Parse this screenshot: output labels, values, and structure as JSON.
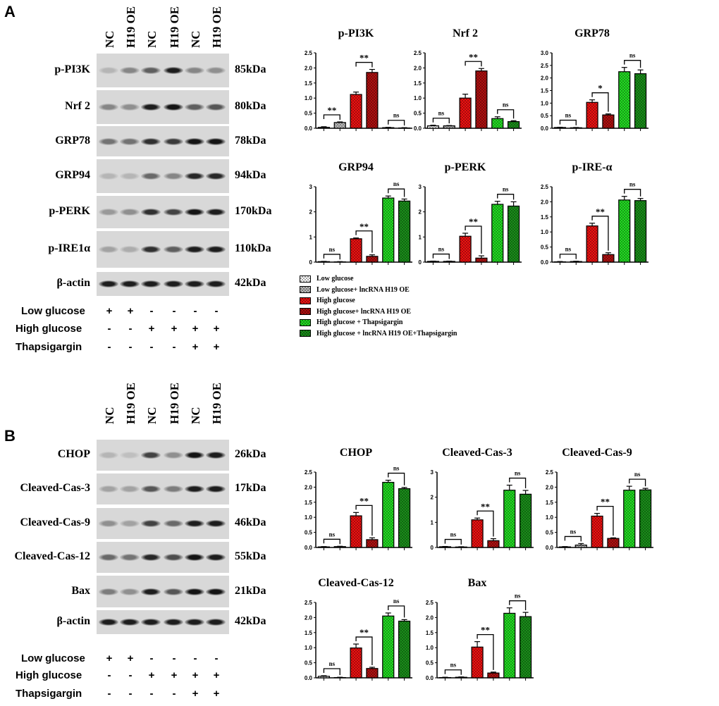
{
  "panels": [
    {
      "label": "A",
      "lanes": [
        "NC",
        "H19 OE",
        "NC",
        "H19 OE",
        "NC",
        "H19 OE"
      ],
      "blots": [
        {
          "protein": "p-PI3K",
          "kda": "85kDa",
          "band_intensity": [
            0.1,
            0.35,
            0.55,
            0.9,
            0.35,
            0.3
          ]
        },
        {
          "protein": "Nrf 2",
          "kda": "80kDa",
          "band_intensity": [
            0.35,
            0.3,
            0.9,
            0.95,
            0.55,
            0.6
          ]
        },
        {
          "protein": "GRP78",
          "kda": "78kDa",
          "band_intensity": [
            0.45,
            0.45,
            0.8,
            0.75,
            0.95,
            0.95
          ]
        },
        {
          "protein": "GRP94",
          "kda": "94kDa",
          "band_intensity": [
            0.1,
            0.1,
            0.5,
            0.35,
            0.85,
            0.85
          ]
        },
        {
          "protein": "p-PERK",
          "kda": "170kDa",
          "band_intensity": [
            0.25,
            0.3,
            0.8,
            0.7,
            0.95,
            0.9
          ]
        },
        {
          "protein": "p-IRE1α",
          "kda": "110kDa",
          "band_intensity": [
            0.2,
            0.15,
            0.8,
            0.55,
            0.9,
            0.9
          ]
        },
        {
          "protein": "β-actin",
          "kda": "42kDa",
          "band_intensity": [
            0.9,
            0.9,
            0.9,
            0.9,
            0.9,
            0.9
          ]
        }
      ],
      "treatments": [
        {
          "name": "Low glucose",
          "signs": [
            "+",
            "+",
            "-",
            "-",
            "-",
            "-"
          ]
        },
        {
          "name": "High glucose",
          "signs": [
            "-",
            "-",
            "+",
            "+",
            "+",
            "+"
          ]
        },
        {
          "name": "Thapsigargin",
          "signs": [
            "-",
            "-",
            "-",
            "-",
            "+",
            "+"
          ]
        }
      ]
    },
    {
      "label": "B",
      "lanes": [
        "NC",
        "H19 OE",
        "NC",
        "H19 OE",
        "NC",
        "H19 OE"
      ],
      "blots": [
        {
          "protein": "CHOP",
          "kda": "26kDa",
          "band_intensity": [
            0.1,
            0.05,
            0.7,
            0.3,
            0.95,
            0.9
          ]
        },
        {
          "protein": "Cleaved-Cas-3",
          "kda": "17kDa",
          "band_intensity": [
            0.2,
            0.2,
            0.6,
            0.4,
            0.9,
            0.9
          ]
        },
        {
          "protein": "Cleaved-Cas-9",
          "kda": "46kDa",
          "band_intensity": [
            0.3,
            0.2,
            0.7,
            0.5,
            0.9,
            0.9
          ]
        },
        {
          "protein": "Cleaved-Cas-12",
          "kda": "55kDa",
          "band_intensity": [
            0.5,
            0.45,
            0.85,
            0.65,
            0.95,
            0.9
          ]
        },
        {
          "protein": "Bax",
          "kda": "21kDa",
          "band_intensity": [
            0.4,
            0.3,
            0.9,
            0.6,
            0.95,
            0.95
          ]
        },
        {
          "protein": "β-actin",
          "kda": "42kDa",
          "band_intensity": [
            0.9,
            0.9,
            0.9,
            0.9,
            0.9,
            0.9
          ]
        }
      ],
      "treatments": [
        {
          "name": "Low glucose",
          "signs": [
            "+",
            "+",
            "-",
            "-",
            "-",
            "-"
          ]
        },
        {
          "name": "High glucose",
          "signs": [
            "-",
            "-",
            "+",
            "+",
            "+",
            "+"
          ]
        },
        {
          "name": "Thapsigargin",
          "signs": [
            "-",
            "-",
            "-",
            "-",
            "+",
            "+"
          ]
        }
      ]
    }
  ],
  "legend": [
    {
      "label": "Low glucose",
      "color": "#ffffff"
    },
    {
      "label": "Low glucose+ lncRNA H19 OE",
      "color": "#bbbbbb"
    },
    {
      "label": "High glucose",
      "color": "#ee1111"
    },
    {
      "label": "High glucose+ lncRNA H19 OE",
      "color": "#b01010"
    },
    {
      "label": "High glucose + Thapsigargin",
      "color": "#22dd22"
    },
    {
      "label": "High glucose + lncRNA H19 OE+Thapsigargin",
      "color": "#1a8f1a"
    }
  ],
  "chart_data": [
    {
      "type": "bar",
      "title": "p-PI3K",
      "ylim": [
        0,
        2.5
      ],
      "ystep": 0.5,
      "decimals": 1,
      "values": [
        0.03,
        0.19,
        1.12,
        1.85,
        0.02,
        0.01
      ],
      "errors": [
        0.02,
        0.02,
        0.08,
        0.1,
        0.01,
        0.01
      ],
      "significance": [
        "**",
        "**",
        "ns"
      ]
    },
    {
      "type": "bar",
      "title": "Nrf 2",
      "ylim": [
        0,
        2.5
      ],
      "ystep": 0.5,
      "decimals": 1,
      "values": [
        0.08,
        0.08,
        1.0,
        1.9,
        0.32,
        0.22
      ],
      "errors": [
        0.02,
        0.01,
        0.13,
        0.08,
        0.06,
        0.03
      ],
      "significance": [
        "ns",
        "**",
        "ns"
      ]
    },
    {
      "type": "bar",
      "title": "GRP78",
      "ylim": [
        0,
        3
      ],
      "ystep": 0.5,
      "decimals": 1,
      "values": [
        0.03,
        0.02,
        1.03,
        0.53,
        2.25,
        2.17
      ],
      "errors": [
        0.01,
        0.01,
        0.1,
        0.04,
        0.17,
        0.15
      ],
      "significance": [
        "ns",
        "*",
        "ns"
      ]
    },
    {
      "type": "bar",
      "title": "GRP94",
      "ylim": [
        0,
        3
      ],
      "ystep": 1,
      "decimals": 0,
      "values": [
        0.02,
        0.01,
        0.93,
        0.23,
        2.55,
        2.43
      ],
      "errors": [
        0.01,
        0.01,
        0.03,
        0.06,
        0.08,
        0.08
      ],
      "significance": [
        "ns",
        "**",
        "ns"
      ]
    },
    {
      "type": "bar",
      "title": "p-PERK",
      "ylim": [
        0,
        3
      ],
      "ystep": 1,
      "decimals": 0,
      "values": [
        0.03,
        0.03,
        1.03,
        0.16,
        2.3,
        2.23
      ],
      "errors": [
        0.01,
        0.01,
        0.12,
        0.09,
        0.12,
        0.17
      ],
      "significance": [
        "ns",
        "**",
        "ns"
      ]
    },
    {
      "type": "bar",
      "title": "p-IRE-α",
      "ylim": [
        0,
        2.5
      ],
      "ystep": 0.5,
      "decimals": 1,
      "values": [
        0.01,
        0.02,
        1.2,
        0.25,
        2.06,
        2.04
      ],
      "errors": [
        0.01,
        0.01,
        0.09,
        0.06,
        0.12,
        0.07
      ],
      "significance": [
        "ns",
        "**",
        "ns"
      ]
    },
    {
      "type": "bar",
      "title": "CHOP",
      "ylim": [
        0,
        2.5
      ],
      "ystep": 0.5,
      "decimals": 1,
      "values": [
        0.02,
        0.03,
        1.05,
        0.26,
        2.16,
        1.95
      ],
      "errors": [
        0.01,
        0.01,
        0.11,
        0.06,
        0.07,
        0.04
      ],
      "significance": [
        "ns",
        "**",
        "ns"
      ]
    },
    {
      "type": "bar",
      "title": "Cleaved-Cas-3",
      "ylim": [
        0,
        3
      ],
      "ystep": 1,
      "decimals": 0,
      "values": [
        0.03,
        0.02,
        1.1,
        0.27,
        2.28,
        2.12
      ],
      "errors": [
        0.01,
        0.01,
        0.07,
        0.08,
        0.2,
        0.15
      ],
      "significance": [
        "ns",
        "**",
        "ns"
      ]
    },
    {
      "type": "bar",
      "title": "Cleaved-Cas-9",
      "ylim": [
        0,
        2.5
      ],
      "ystep": 0.5,
      "decimals": 1,
      "values": [
        0.02,
        0.08,
        1.04,
        0.3,
        1.9,
        1.91
      ],
      "errors": [
        0.01,
        0.05,
        0.09,
        0.02,
        0.13,
        0.05
      ],
      "significance": [
        "ns",
        "**",
        "ns"
      ]
    },
    {
      "type": "bar",
      "title": "Cleaved-Cas-12",
      "ylim": [
        0,
        2.5
      ],
      "ystep": 0.5,
      "decimals": 1,
      "values": [
        0.05,
        0.01,
        0.99,
        0.31,
        2.05,
        1.88
      ],
      "errors": [
        0.02,
        0.01,
        0.13,
        0.04,
        0.1,
        0.05
      ],
      "significance": [
        "ns",
        "**",
        "ns"
      ]
    },
    {
      "type": "bar",
      "title": "Bax",
      "ylim": [
        0,
        2.5
      ],
      "ystep": 0.5,
      "decimals": 1,
      "values": [
        0.01,
        0.02,
        1.02,
        0.16,
        2.14,
        2.03
      ],
      "errors": [
        0.01,
        0.01,
        0.18,
        0.03,
        0.18,
        0.14
      ],
      "significance": [
        "ns",
        "**",
        "ns"
      ]
    }
  ]
}
